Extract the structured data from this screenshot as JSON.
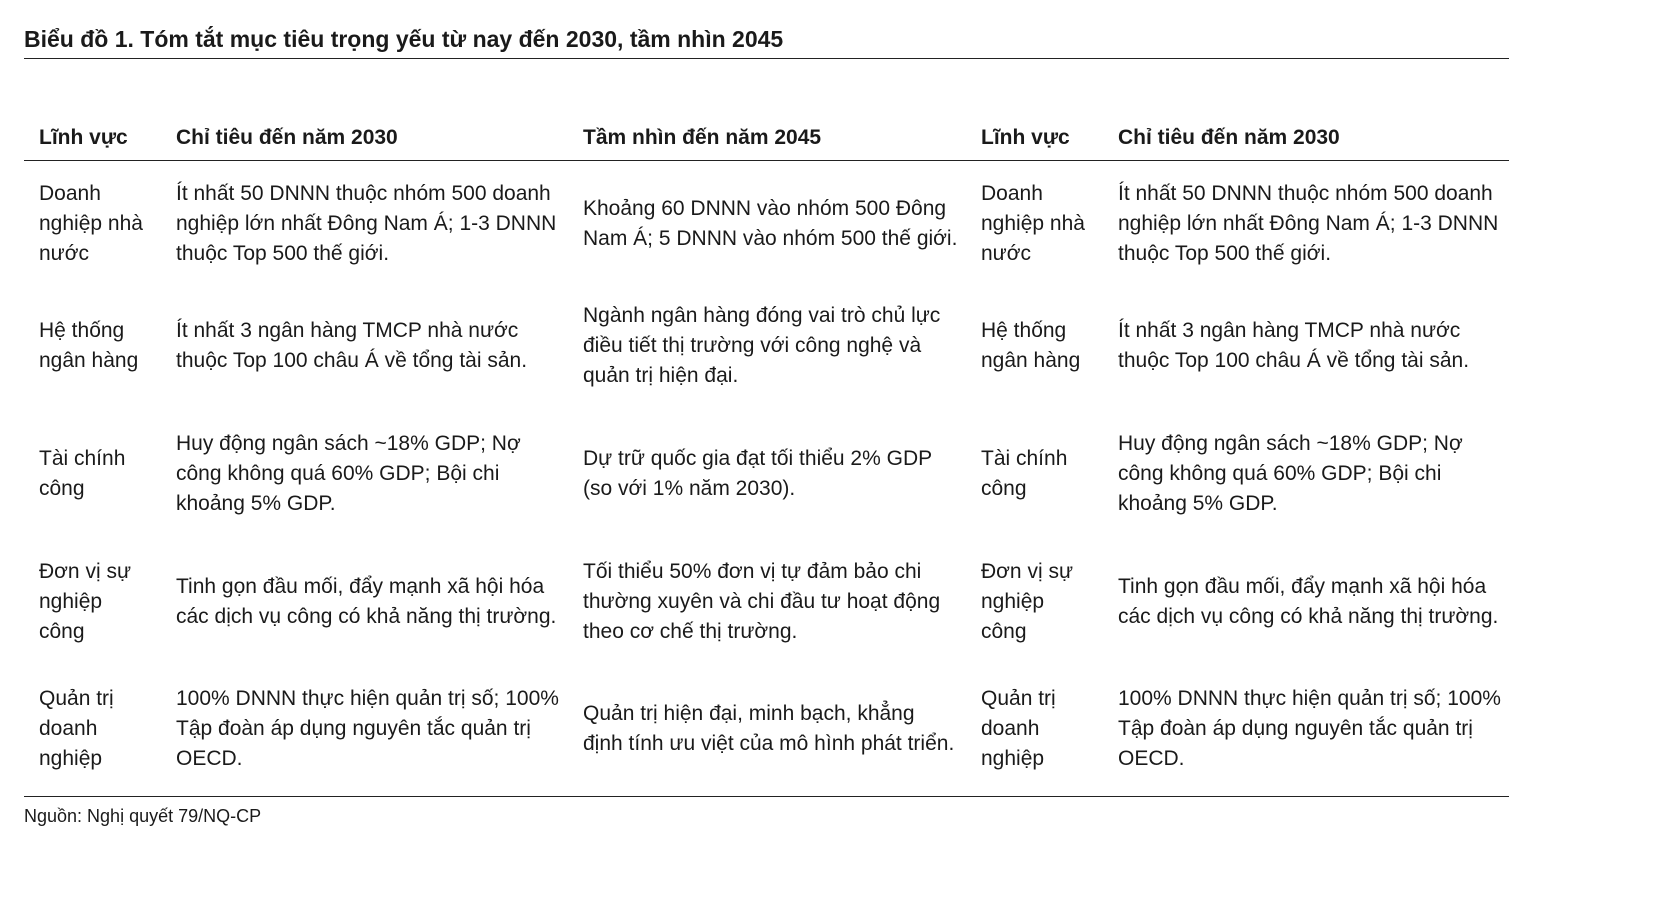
{
  "title": "Biểu đồ 1. Tóm tắt mục tiêu trọng yếu từ nay đến 2030, tầm nhìn 2045",
  "table": {
    "headers": [
      "Lĩnh vực",
      "Chỉ tiêu đến năm 2030",
      "Tầm nhìn đến năm 2045",
      "Lĩnh vực",
      "Chỉ tiêu đến năm 2030"
    ],
    "rows": [
      {
        "field": "Doanh nghiệp nhà nước",
        "target_2030": "Ít nhất 50 DNNN thuộc nhóm 500 doanh nghiệp lớn nhất Đông Nam Á; 1-3 DNNN thuộc Top 500 thế giới.",
        "vision_2045": "Khoảng 60 DNNN vào nhóm 500 Đông Nam Á; 5 DNNN vào nhóm 500 thế giới.",
        "field_repeat": "Doanh nghiệp nhà nước",
        "target_2030_repeat": "Ít nhất 50 DNNN thuộc nhóm 500 doanh nghiệp lớn nhất Đông Nam Á; 1-3 DNNN thuộc Top 500 thế giới."
      },
      {
        "field": "Hệ thống ngân hàng",
        "target_2030": "Ít nhất 3 ngân hàng TMCP nhà nước thuộc Top 100 châu Á về tổng tài sản.",
        "vision_2045": "Ngành ngân hàng đóng vai trò chủ lực điều tiết thị trường với công nghệ và quản trị hiện đại.",
        "field_repeat": "Hệ thống ngân hàng",
        "target_2030_repeat": "Ít nhất 3 ngân hàng TMCP nhà nước thuộc Top 100 châu Á về tổng tài sản."
      },
      {
        "field": "Tài chính công",
        "target_2030": "Huy động ngân sách ~18% GDP; Nợ công không quá 60% GDP; Bội chi khoảng 5% GDP.",
        "vision_2045": "Dự trữ quốc gia đạt tối thiểu 2% GDP (so với 1% năm 2030).",
        "field_repeat": "Tài chính công",
        "target_2030_repeat": "Huy động ngân sách ~18% GDP; Nợ công không quá 60% GDP; Bội chi khoảng 5% GDP."
      },
      {
        "field": "Đơn vị sự nghiệp công",
        "target_2030": "Tinh gọn đầu mối, đẩy mạnh xã hội hóa các dịch vụ công có khả năng thị trường.",
        "vision_2045": "Tối thiểu 50% đơn vị tự đảm bảo chi thường xuyên và chi đầu tư hoạt động theo cơ chế thị trường.",
        "field_repeat": "Đơn vị sự nghiệp công",
        "target_2030_repeat": "Tinh gọn đầu mối, đẩy mạnh xã hội hóa các dịch vụ công có khả năng thị trường."
      },
      {
        "field": "Quản trị doanh nghiệp",
        "target_2030": "100% DNNN thực hiện quản trị số; 100% Tập đoàn áp dụng nguyên tắc quản trị OECD.",
        "vision_2045": "Quản trị hiện đại, minh bạch, khẳng định tính ưu việt của mô hình phát triển.",
        "field_repeat": "Quản trị doanh nghiệp",
        "target_2030_repeat": "100% DNNN thực hiện quản trị số; 100% Tập đoàn áp dụng nguyên tắc quản trị OECD."
      }
    ]
  },
  "source": "Nguồn: Nghị quyết 79/NQ-CP"
}
